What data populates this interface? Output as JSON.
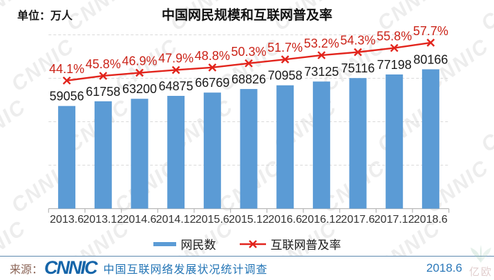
{
  "header": {
    "unit_label": "单位：万人",
    "title": "中国网民规模和互联网普及率"
  },
  "watermark": {
    "text": "CNNIC",
    "corner_text": "亿欧"
  },
  "chart_data": {
    "type": "combo (bar + line)",
    "title": "中国网民规模和互联网普及率",
    "unit": "万人",
    "categories": [
      "2013.6",
      "2013.12",
      "2014.6",
      "2014.12",
      "2015.6",
      "2015.12",
      "2016.6",
      "2016.12",
      "2017.6",
      "2017.12",
      "2018.6"
    ],
    "series": [
      {
        "name": "网民数",
        "type": "bar",
        "color": "#5b9bd5",
        "label_color": "#1a1a1a",
        "values": [
          59056,
          61758,
          63200,
          64875,
          66769,
          68826,
          70958,
          73125,
          75116,
          77198,
          80166
        ]
      },
      {
        "name": "互联网普及率",
        "type": "line",
        "marker": "x",
        "color": "#e2241c",
        "label_color": "#cb2318",
        "values_percent": [
          44.1,
          45.8,
          46.9,
          47.9,
          48.8,
          50.3,
          51.7,
          53.2,
          54.3,
          55.8,
          57.7
        ]
      }
    ],
    "ylim_left": [
      0,
      100000
    ],
    "grid": "horizontal dashed gridlines",
    "axis_color": "#b7b7b7",
    "grid_color": "#d9d9d9",
    "legend_position": "bottom",
    "value_labels": true
  },
  "footer": {
    "source_label": "来源：",
    "logo_text": "CNNIC",
    "source_text": "中国互联网络发展状况统计调查",
    "date": "2018.6"
  }
}
